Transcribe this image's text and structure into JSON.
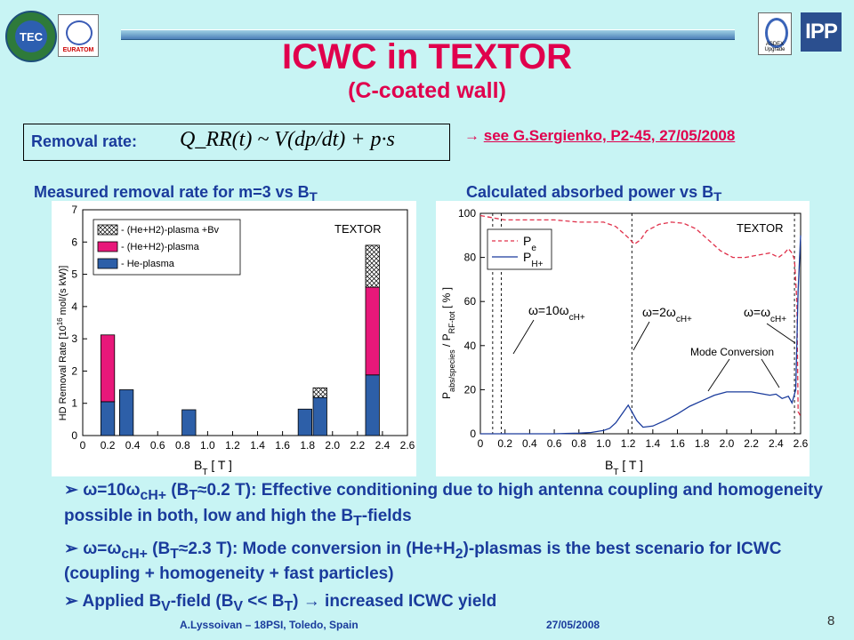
{
  "logos": {
    "left1": "TEC",
    "left2": "EURATOM",
    "right1": "ASDEX Upgrade",
    "right2": "IPP"
  },
  "title": "ICWC in TEXTOR",
  "subtitle": "(C-coated wall)",
  "removal": {
    "label": "Removal rate:",
    "formula": "Q_RR(t) ~ V(dp/dt) + p·s"
  },
  "reference": {
    "arrow": "→",
    "text": "see G.Sergienko, P2-45, 27/05/2008"
  },
  "left_heading": "Measured removal rate for m=3 vs B",
  "left_heading_sub": "T",
  "right_heading": "Calculated absorbed power vs B",
  "right_heading_sub": "T",
  "chart_data": [
    {
      "type": "bar",
      "stacked": true,
      "xlabel": "B_T [T]",
      "ylabel": "HD Removal Rate [10^16 mol/(s kW)]",
      "xlim": [
        0,
        2.6
      ],
      "ylim": [
        0,
        7
      ],
      "xticks": [
        "0",
        "0.2",
        "0.4",
        "0.6",
        "0.8",
        "1.0",
        "1.2",
        "1.4",
        "1.6",
        "1.8",
        "2.0",
        "2.2",
        "2.4",
        "2.6"
      ],
      "yticks": [
        "0",
        "1",
        "2",
        "3",
        "4",
        "5",
        "6",
        "7"
      ],
      "x": [
        0.2,
        0.35,
        0.85,
        1.78,
        1.9,
        2.32
      ],
      "series": [
        {
          "name": "- He-plasma",
          "color": "#2d5fa8",
          "values": [
            1.05,
            1.42,
            0.8,
            0.82,
            1.18,
            1.88
          ]
        },
        {
          "name": "- (He+H2)-plasma",
          "color": "#e8187a",
          "values": [
            2.07,
            0,
            0,
            0,
            0,
            2.72
          ]
        },
        {
          "name": "- (He+H2)-plasma +Bv",
          "color": "#d8d8d8",
          "values": [
            0,
            0,
            0,
            0,
            0.3,
            1.3
          ]
        }
      ],
      "annotations": [
        "TEXTOR"
      ],
      "legend": "top-left"
    },
    {
      "type": "line",
      "xlabel": "B_T [T]",
      "ylabel": "P_abs/species / P_RF-tot [%]",
      "xlim": [
        0,
        2.6
      ],
      "ylim": [
        0,
        100
      ],
      "xticks": [
        "0",
        "0.2",
        "0.4",
        "0.6",
        "0.8",
        "1.0",
        "1.2",
        "1.4",
        "1.6",
        "1.8",
        "2.0",
        "2.2",
        "2.4",
        "2.6"
      ],
      "yticks": [
        "0",
        "20",
        "40",
        "60",
        "80",
        "100"
      ],
      "series": [
        {
          "name": "P_e",
          "color": "#e0304a",
          "dash": true,
          "x": [
            0,
            0.1,
            0.2,
            0.3,
            0.4,
            0.6,
            0.8,
            1.0,
            1.1,
            1.2,
            1.25,
            1.3,
            1.35,
            1.45,
            1.55,
            1.65,
            1.75,
            1.85,
            1.95,
            2.05,
            2.15,
            2.25,
            2.35,
            2.42,
            2.47,
            2.5,
            2.53,
            2.55,
            2.57,
            2.58,
            2.6
          ],
          "y": [
            99,
            98,
            97,
            97,
            97,
            97,
            96,
            96,
            94,
            89,
            86,
            88,
            92,
            95,
            96,
            95.5,
            93,
            88,
            83,
            80,
            80,
            81,
            82,
            80,
            82,
            84,
            82,
            79,
            60,
            10,
            8
          ]
        },
        {
          "name": "P_H+",
          "color": "#1a3b9c",
          "dash": false,
          "x": [
            0,
            0.2,
            0.4,
            0.6,
            0.8,
            0.9,
            1.0,
            1.05,
            1.1,
            1.15,
            1.2,
            1.23,
            1.27,
            1.32,
            1.4,
            1.5,
            1.6,
            1.7,
            1.8,
            1.9,
            2.0,
            2.1,
            2.2,
            2.3,
            2.35,
            2.4,
            2.45,
            2.5,
            2.53,
            2.56,
            2.58,
            2.6
          ],
          "y": [
            0,
            0,
            0,
            0,
            0.3,
            0.6,
            1.5,
            2.5,
            5,
            9,
            13,
            10,
            6,
            3,
            3.5,
            6,
            9,
            12.5,
            15,
            17.5,
            19,
            19,
            19,
            18,
            17.5,
            18,
            16,
            17,
            14,
            20,
            65,
            90
          ]
        }
      ],
      "vlines": [
        0.1,
        0.17,
        1.23,
        2.55
      ],
      "annotations": [
        "TEXTOR",
        "ω=10ω_cH+",
        "ω=2ω_cH+",
        "ω=ω_cH+",
        "Mode Conversion"
      ],
      "legend": "top-left"
    }
  ],
  "left_chart": {
    "legend_1": "- (He+H2)-plasma +Bv",
    "legend_2": "- (He+H2)-plasma",
    "legend_3": "- He-plasma",
    "tag": "TEXTOR",
    "ylabel": "HD Removal Rate [10",
    "ylabel_sup": "16",
    "ylabel_tail": " mol/(s kW)]",
    "xlabel": "B",
    "xlabel_sub": "T",
    "xlabel_unit": " [ T ]"
  },
  "right_chart": {
    "legend_pe": "P",
    "legend_pe_sub": "e",
    "legend_ph": "P",
    "legend_ph_sub": "H+",
    "tag": "TEXTOR",
    "ann_w10": "ω=10ω",
    "ann_w2": "ω=2ω",
    "ann_w1": "ω=ω",
    "ann_sub": "cH+",
    "ann_mode": "Mode Conversion",
    "ylabel_a": "P",
    "ylabel_a_sub": "abs/species",
    "ylabel_b": " / P",
    "ylabel_b_sub": "RF-tot",
    "ylabel_c": "  [ % ]",
    "xlabel": "B",
    "xlabel_sub": "T",
    "xlabel_unit": " [ T ]"
  },
  "bullets": [
    {
      "mark": "➢",
      "lead": "ω=10ω",
      "lead_sub": "cH+",
      "text": " (B",
      "text_sub": "T",
      "text2": "≈0.2 T): Effective conditioning due to high antenna coupling and homogeneity possible in both, low and high the B",
      "text2_sub": "T",
      "text3": "-fields"
    },
    {
      "mark": "➢",
      "lead": "ω=ω",
      "lead_sub": "cH+",
      "text": " (B",
      "text_sub": "T",
      "text2": "≈2.3 T): Mode conversion in (He+H",
      "text2_sub": "2",
      "text3": ")-plasmas is the best scenario for ICWC (coupling + homogeneity + fast particles)"
    },
    {
      "mark": "➢",
      "lead": "Applied B",
      "lead_sub": "V",
      "text": "-field (B",
      "text_sub": "V",
      "text2": " << B",
      "text2_sub": "T",
      "text3": ") → increased ICWC yield"
    }
  ],
  "footer": {
    "left": "A.Lyssoivan – 18PSI, Toledo, Spain",
    "right": "27/05/2008",
    "page": "8"
  }
}
